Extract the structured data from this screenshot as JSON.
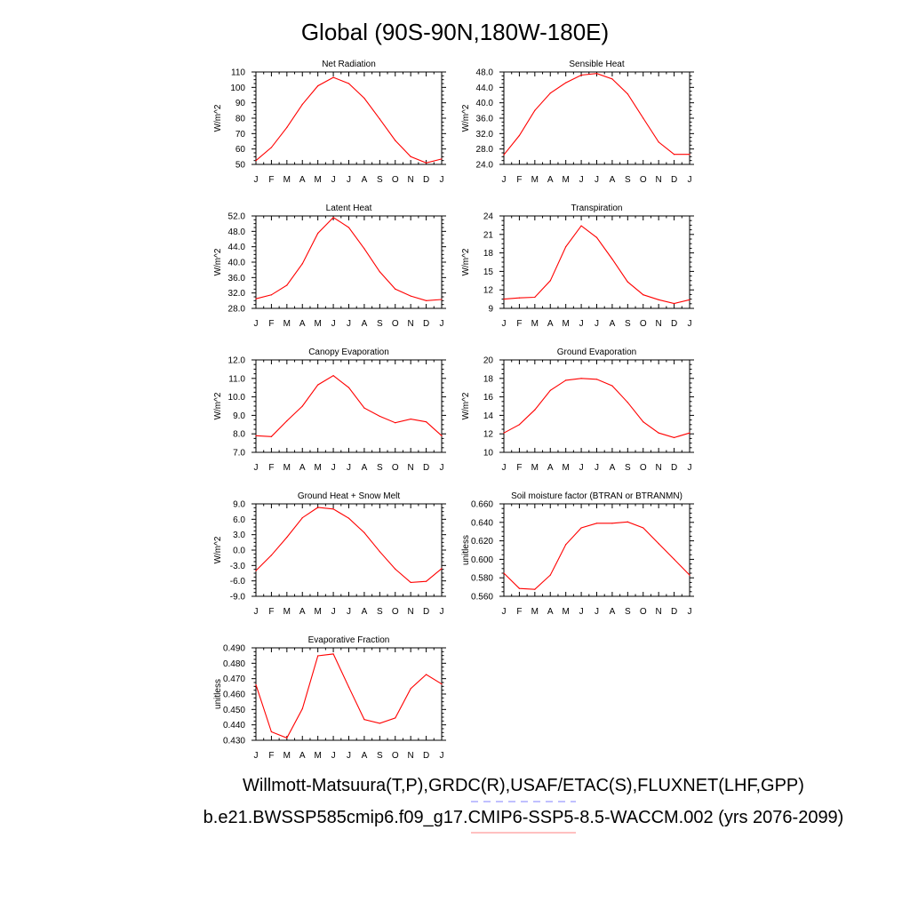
{
  "figure": {
    "title": "Global (90S-90N,180W-180E)",
    "footer_line1": "Willmott-Matsuura(T,P),GRDC(R),USAF/ETAC(S),FLUXNET(LHF,GPP)",
    "footer_line2": "b.e21.BWSSP585cmip6.f09_g17.CMIP6-SSP5-8.5-WACCM.002 (yrs 2076-2099)",
    "line_color": "#ff0000",
    "underline_color_1": "#8080ff",
    "underline_color_2": "#ff8080"
  },
  "chart_data": [
    {
      "type": "line",
      "title": "Net Radiation",
      "ylabel": "W/m^2",
      "categories": [
        "J",
        "F",
        "M",
        "A",
        "M",
        "J",
        "J",
        "A",
        "S",
        "O",
        "N",
        "D",
        "J"
      ],
      "values": [
        52.5,
        61,
        74,
        89,
        101,
        106.5,
        102.5,
        93,
        79.5,
        65.5,
        55,
        51,
        53.5
      ],
      "ylim": [
        50,
        110
      ],
      "yticks": [
        "50",
        "60",
        "70",
        "80",
        "90",
        "100",
        "110"
      ]
    },
    {
      "type": "line",
      "title": "Sensible Heat",
      "ylabel": "W/m^2",
      "categories": [
        "J",
        "F",
        "M",
        "A",
        "M",
        "J",
        "J",
        "A",
        "S",
        "O",
        "N",
        "D",
        "J"
      ],
      "values": [
        26.5,
        31.5,
        38,
        42.5,
        45.2,
        47.2,
        47.6,
        46.2,
        42.3,
        36,
        29.8,
        26.6,
        26.6
      ],
      "ylim": [
        24,
        48
      ],
      "yticks": [
        "24.0",
        "28.0",
        "32.0",
        "36.0",
        "40.0",
        "44.0",
        "48.0"
      ]
    },
    {
      "type": "line",
      "title": "Latent Heat",
      "ylabel": "W/m^2",
      "categories": [
        "J",
        "F",
        "M",
        "A",
        "M",
        "J",
        "J",
        "A",
        "S",
        "O",
        "N",
        "D",
        "J"
      ],
      "values": [
        30.5,
        31.5,
        34,
        39.6,
        47.5,
        51.6,
        49,
        43.5,
        37.5,
        33,
        31.2,
        30,
        30.3
      ],
      "ylim": [
        28,
        52
      ],
      "yticks": [
        "28.0",
        "32.0",
        "36.0",
        "40.0",
        "44.0",
        "48.0",
        "52.0"
      ]
    },
    {
      "type": "line",
      "title": "Transpiration",
      "ylabel": "W/m^2",
      "categories": [
        "J",
        "F",
        "M",
        "A",
        "M",
        "J",
        "J",
        "A",
        "S",
        "O",
        "N",
        "D",
        "J"
      ],
      "values": [
        10.5,
        10.7,
        10.8,
        13.5,
        19,
        22.4,
        20.5,
        17,
        13.3,
        11.2,
        10.4,
        9.8,
        10.4
      ],
      "ylim": [
        9,
        24
      ],
      "yticks": [
        "9",
        "12",
        "15",
        "18",
        "21",
        "24"
      ]
    },
    {
      "type": "line",
      "title": "Canopy Evaporation",
      "ylabel": "W/m^2",
      "categories": [
        "J",
        "F",
        "M",
        "A",
        "M",
        "J",
        "J",
        "A",
        "S",
        "O",
        "N",
        "D",
        "J"
      ],
      "values": [
        7.9,
        7.85,
        8.7,
        9.5,
        10.65,
        11.15,
        10.5,
        9.4,
        8.95,
        8.6,
        8.8,
        8.65,
        7.9
      ],
      "ylim": [
        7,
        12
      ],
      "yticks": [
        "7.0",
        "8.0",
        "9.0",
        "10.0",
        "11.0",
        "12.0"
      ]
    },
    {
      "type": "line",
      "title": "Ground Evaporation",
      "ylabel": "W/m^2",
      "categories": [
        "J",
        "F",
        "M",
        "A",
        "M",
        "J",
        "J",
        "A",
        "S",
        "O",
        "N",
        "D",
        "J"
      ],
      "values": [
        12.1,
        13,
        14.6,
        16.7,
        17.8,
        18,
        17.9,
        17.2,
        15.4,
        13.3,
        12.1,
        11.6,
        12.1
      ],
      "ylim": [
        10,
        20
      ],
      "yticks": [
        "10",
        "12",
        "14",
        "16",
        "18",
        "20"
      ]
    },
    {
      "type": "line",
      "title": "Ground Heat + Snow Melt",
      "ylabel": "W/m^2",
      "categories": [
        "J",
        "F",
        "M",
        "A",
        "M",
        "J",
        "J",
        "A",
        "S",
        "O",
        "N",
        "D",
        "J"
      ],
      "values": [
        -4,
        -1,
        2.5,
        6.3,
        8.3,
        8,
        6.2,
        3.4,
        -0.3,
        -3.7,
        -6.3,
        -6.1,
        -3.6
      ],
      "ylim": [
        -9,
        9
      ],
      "yticks": [
        "-9.0",
        "-6.0",
        "-3.0",
        "0.0",
        "3.0",
        "6.0",
        "9.0"
      ]
    },
    {
      "type": "line",
      "title": "Soil moisture factor (BTRAN or BTRANMN)",
      "ylabel": "unitless",
      "categories": [
        "J",
        "F",
        "M",
        "A",
        "M",
        "J",
        "J",
        "A",
        "S",
        "O",
        "N",
        "D",
        "J"
      ],
      "values": [
        0.585,
        0.5685,
        0.5675,
        0.583,
        0.616,
        0.634,
        0.639,
        0.639,
        0.6405,
        0.634,
        0.617,
        0.6,
        0.583
      ],
      "ylim": [
        0.56,
        0.66
      ],
      "yticks": [
        "0.560",
        "0.580",
        "0.600",
        "0.620",
        "0.640",
        "0.660"
      ]
    },
    {
      "type": "line",
      "title": "Evaporative Fraction",
      "ylabel": "unitless",
      "categories": [
        "J",
        "F",
        "M",
        "A",
        "M",
        "J",
        "J",
        "A",
        "S",
        "O",
        "N",
        "D",
        "J"
      ],
      "values": [
        0.466,
        0.4355,
        0.4315,
        0.4505,
        0.4848,
        0.486,
        0.4645,
        0.4435,
        0.441,
        0.4445,
        0.4635,
        0.4727,
        0.4665
      ],
      "ylim": [
        0.43,
        0.49
      ],
      "yticks": [
        "0.430",
        "0.440",
        "0.450",
        "0.460",
        "0.470",
        "0.480",
        "0.490"
      ]
    }
  ]
}
